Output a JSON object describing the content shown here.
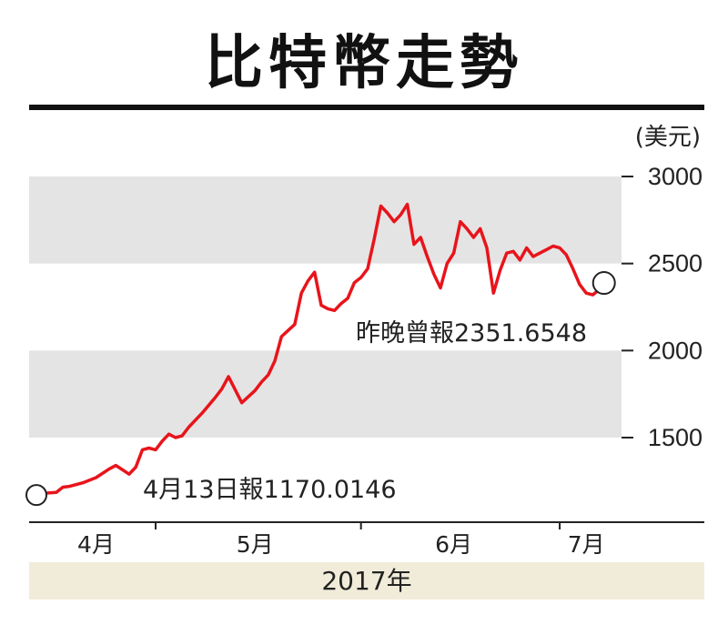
{
  "chart_data": {
    "type": "line",
    "title": "比特幣走勢",
    "unit": "(美元)",
    "year_label": "2017年",
    "ylim": [
      1000,
      3000
    ],
    "yticks": [
      3000,
      2500,
      2000,
      1500
    ],
    "ytick_labels": [
      "3000",
      "2500",
      "2000",
      "1500"
    ],
    "bands": [
      [
        2500,
        3000
      ],
      [
        1500,
        2000
      ]
    ],
    "xlim": [
      "2017-04-13",
      "2017-07-08"
    ],
    "month_ticks": [
      "2017-05-01",
      "2017-06-01",
      "2017-07-01"
    ],
    "month_labels": [
      {
        "text": "4月",
        "date": "2017-04-22"
      },
      {
        "text": "5月",
        "date": "2017-05-16"
      },
      {
        "text": "6月",
        "date": "2017-06-15"
      },
      {
        "text": "7月",
        "date": "2017-07-05"
      }
    ],
    "series": [
      {
        "color": "#e8141b",
        "x": [
          "2017-04-13",
          "2017-04-14",
          "2017-04-16",
          "2017-04-17",
          "2017-04-18",
          "2017-04-20",
          "2017-04-22",
          "2017-04-24",
          "2017-04-25",
          "2017-04-27",
          "2017-04-28",
          "2017-04-29",
          "2017-04-30",
          "2017-05-01",
          "2017-05-02",
          "2017-05-03",
          "2017-05-04",
          "2017-05-05",
          "2017-05-06",
          "2017-05-08",
          "2017-05-10",
          "2017-05-11",
          "2017-05-12",
          "2017-05-14",
          "2017-05-16",
          "2017-05-17",
          "2017-05-18",
          "2017-05-19",
          "2017-05-20",
          "2017-05-22",
          "2017-05-23",
          "2017-05-24",
          "2017-05-25",
          "2017-05-26",
          "2017-05-27",
          "2017-05-28",
          "2017-05-29",
          "2017-05-30",
          "2017-05-31",
          "2017-06-01",
          "2017-06-02",
          "2017-06-03",
          "2017-06-04",
          "2017-06-05",
          "2017-06-06",
          "2017-06-07",
          "2017-06-08",
          "2017-06-09",
          "2017-06-10",
          "2017-06-11",
          "2017-06-12",
          "2017-06-13",
          "2017-06-14",
          "2017-06-15",
          "2017-06-16",
          "2017-06-17",
          "2017-06-18",
          "2017-06-19",
          "2017-06-20",
          "2017-06-21",
          "2017-06-22",
          "2017-06-23",
          "2017-06-24",
          "2017-06-25",
          "2017-06-26",
          "2017-06-27",
          "2017-06-28",
          "2017-06-29",
          "2017-06-30",
          "2017-07-01",
          "2017-07-02",
          "2017-07-03",
          "2017-07-04",
          "2017-07-05",
          "2017-07-06",
          "2017-07-07"
        ],
        "values": [
          1170,
          1180,
          1185,
          1215,
          1220,
          1240,
          1270,
          1320,
          1340,
          1290,
          1330,
          1430,
          1440,
          1430,
          1480,
          1520,
          1500,
          1510,
          1560,
          1640,
          1730,
          1780,
          1850,
          1700,
          1770,
          1820,
          1860,
          1940,
          2080,
          2150,
          2330,
          2400,
          2450,
          2260,
          2240,
          2230,
          2270,
          2300,
          2390,
          2420,
          2470,
          2640,
          2830,
          2790,
          2740,
          2780,
          2840,
          2610,
          2650,
          2540,
          2440,
          2360,
          2500,
          2560,
          2740,
          2700,
          2650,
          2700,
          2590,
          2330,
          2460,
          2560,
          2570,
          2520,
          2590,
          2540,
          2560,
          2580,
          2600,
          2590,
          2550,
          2470,
          2380,
          2330,
          2320,
          2351.6548
        ]
      }
    ],
    "annotations": [
      {
        "text": "4月13日報1170.0146",
        "x": "2017-04-13",
        "y": 1170.0146
      },
      {
        "text": "昨晚曾報2351.6548",
        "x": "2017-07-07",
        "y": 2351.6548
      }
    ]
  }
}
